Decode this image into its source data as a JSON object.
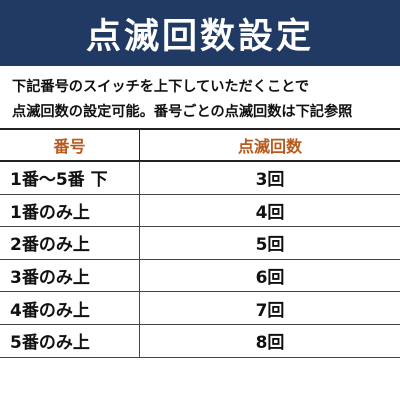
{
  "banner": {
    "title": "点滅回数設定",
    "background": "#203a63"
  },
  "description": {
    "line1": "下記番号のスイッチを上下していただくことで",
    "line2": "点滅回数の設定可能。番号ごとの点滅回数は下記参照"
  },
  "table": {
    "header_color": "#b85a1e",
    "headers": {
      "number": "番号",
      "blink_count": "点滅回数"
    },
    "rows": [
      {
        "switch": "1番～5番 下",
        "count": "3回"
      },
      {
        "switch": "1番のみ上",
        "count": "4回"
      },
      {
        "switch": "2番のみ上",
        "count": "5回"
      },
      {
        "switch": "3番のみ上",
        "count": "6回"
      },
      {
        "switch": "4番のみ上",
        "count": "7回"
      },
      {
        "switch": "5番のみ上",
        "count": "8回"
      }
    ]
  }
}
